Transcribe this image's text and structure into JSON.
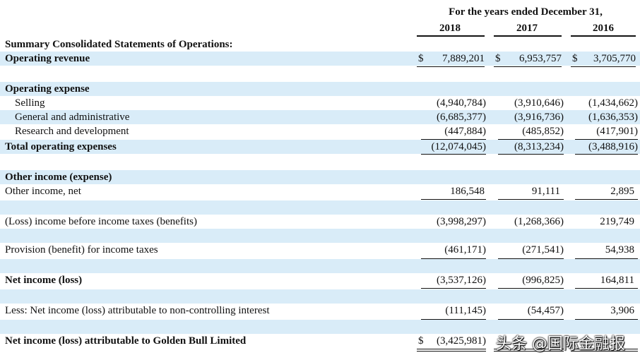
{
  "header": {
    "period": "For the years ended December 31,",
    "years": [
      "2018",
      "2017",
      "2016"
    ]
  },
  "rows": {
    "summary": {
      "label": "Summary Consolidated Statements of Operations:"
    },
    "operating_revenue": {
      "label": "Operating revenue",
      "currency": "$",
      "values": [
        "7,889,201",
        "6,953,757",
        "3,705,770"
      ]
    },
    "operating_expense": {
      "label": "Operating expense"
    },
    "selling": {
      "label": "Selling",
      "values": [
        "(4,940,784)",
        "(3,910,646)",
        "(1,434,662)"
      ]
    },
    "general_admin": {
      "label": "General and administrative",
      "values": [
        "(6,685,377)",
        "(3,916,736)",
        "(1,636,353)"
      ]
    },
    "research_dev": {
      "label": "Research and development",
      "values": [
        "(447,884)",
        "(485,852)",
        "(417,901)"
      ]
    },
    "total_operating_expenses": {
      "label": "Total operating expenses",
      "values": [
        "(12,074,045)",
        "(8,313,234)",
        "(3,488,916)"
      ]
    },
    "other_income_header": {
      "label": "Other income (expense)"
    },
    "other_income_net": {
      "label": "Other income, net",
      "values": [
        "186,548",
        "91,111",
        "2,895"
      ]
    },
    "loss_before_tax": {
      "label": "(Loss) income before income taxes (benefits)",
      "values": [
        "(3,998,297)",
        "(1,268,366)",
        "219,749"
      ]
    },
    "provision_tax": {
      "label": "Provision (benefit) for income taxes",
      "values": [
        "(461,171)",
        "(271,541)",
        "54,938"
      ]
    },
    "net_income": {
      "label": "Net income (loss)",
      "values": [
        "(3,537,126)",
        "(996,825)",
        "164,811"
      ]
    },
    "non_controlling": {
      "label": "Less: Net income (loss) attributable to non-controlling interest",
      "values": [
        "(111,145)",
        "(54,457)",
        "3,906"
      ]
    },
    "attributable_golden_bull": {
      "label": "Net  income (loss) attributable to Golden Bull Limited",
      "currency": "$",
      "values": [
        "(3,425,981)"
      ]
    }
  },
  "watermark": "头条 @国际金融报"
}
